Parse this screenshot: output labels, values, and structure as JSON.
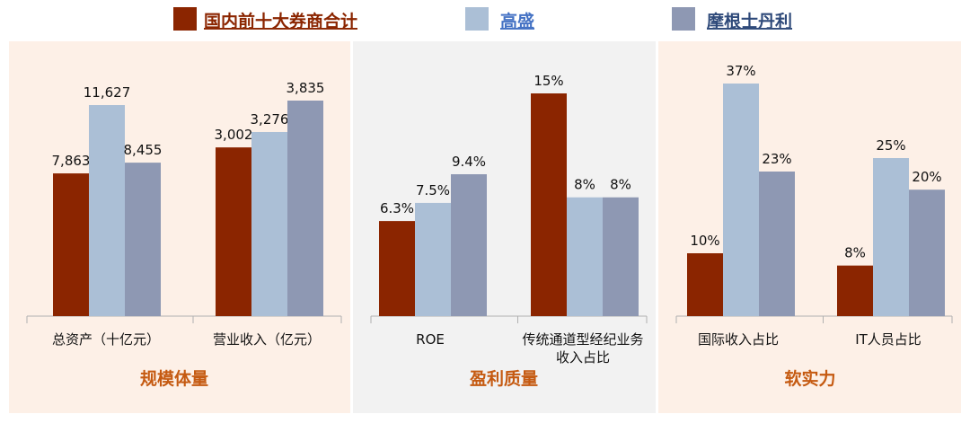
{
  "colors": {
    "domestic": "#8B2500",
    "gs": "#ABBFD6",
    "ms": "#8E98B3",
    "panel_warm": "#FDF0E7",
    "panel_grey": "#F2F2F2",
    "section_title": "#C55A11",
    "axis": "#B0B0B0"
  },
  "chart_data": {
    "type": "bar",
    "legend": [
      {
        "name": "国内前十大券商合计",
        "color": "#8B2500",
        "text_color": "#8B2500"
      },
      {
        "name": "高盛",
        "color": "#ABBFD6",
        "text_color": "#4472C4"
      },
      {
        "name": "摩根士丹利",
        "color": "#8E98B3",
        "text_color": "#2F4A7A"
      }
    ],
    "legend_position": "top",
    "panels": [
      {
        "title": "规模体量",
        "background": "warm",
        "groups": [
          {
            "category": [
              "总资产（十亿元）"
            ],
            "values": [
              7863,
              11627,
              8455
            ],
            "labels": [
              "7,863",
              "11,627",
              "8,455"
            ]
          },
          {
            "category": [
              "营业收入（亿元）"
            ],
            "values": [
              3002,
              3276,
              3835
            ],
            "labels": [
              "3,002",
              "3,276",
              "3,835"
            ]
          }
        ]
      },
      {
        "title": "盈利质量",
        "background": "grey",
        "groups": [
          {
            "category": [
              "ROE"
            ],
            "values": [
              6.3,
              7.5,
              9.4
            ],
            "labels": [
              "6.3%",
              "7.5%",
              "9.4%"
            ]
          },
          {
            "category": [
              "传统通道型经纪业务",
              "收入占比"
            ],
            "values": [
              15,
              8,
              8
            ],
            "labels": [
              "15%",
              "8%",
              "8%"
            ]
          }
        ]
      },
      {
        "title": "软实力",
        "background": "warm",
        "groups": [
          {
            "category": [
              "国际收入占比"
            ],
            "values": [
              10,
              37,
              23
            ],
            "labels": [
              "10%",
              "37%",
              "23%"
            ]
          },
          {
            "category": [
              "IT人员占比"
            ],
            "values": [
              8,
              25,
              20
            ],
            "labels": [
              "8%",
              "25%",
              "20%"
            ]
          }
        ]
      }
    ]
  }
}
